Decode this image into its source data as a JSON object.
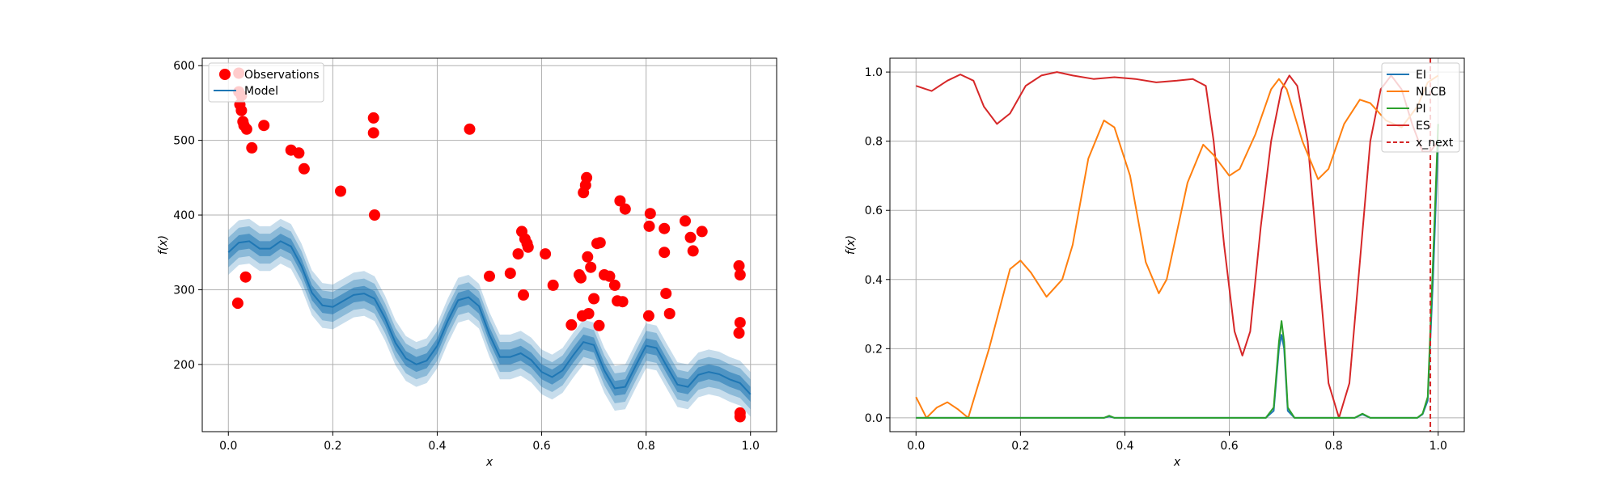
{
  "chart_data": [
    {
      "type": "scatter",
      "xlabel": "x",
      "ylabel": "f(x)",
      "xlim": [
        -0.05,
        1.05
      ],
      "ylim": [
        110,
        610
      ],
      "xticks": [
        0.0,
        0.2,
        0.4,
        0.6,
        0.8,
        1.0
      ],
      "xtick_labels": [
        "0.0",
        "0.2",
        "0.4",
        "0.6",
        "0.8",
        "1.0"
      ],
      "yticks": [
        200,
        300,
        400,
        500,
        600
      ],
      "ytick_labels": [
        "200",
        "300",
        "400",
        "500",
        "600"
      ],
      "grid": true,
      "legend_position": "upper-left",
      "legend": [
        "Observations",
        "Model"
      ],
      "colors": {
        "observations": "#ff0000",
        "model": "#1f77b4"
      },
      "model": {
        "x": [
          0.0,
          0.02,
          0.04,
          0.06,
          0.08,
          0.1,
          0.12,
          0.14,
          0.16,
          0.18,
          0.2,
          0.22,
          0.24,
          0.26,
          0.28,
          0.3,
          0.32,
          0.34,
          0.36,
          0.38,
          0.4,
          0.42,
          0.44,
          0.46,
          0.48,
          0.5,
          0.52,
          0.54,
          0.56,
          0.58,
          0.6,
          0.62,
          0.64,
          0.66,
          0.68,
          0.7,
          0.72,
          0.74,
          0.76,
          0.78,
          0.8,
          0.82,
          0.84,
          0.86,
          0.88,
          0.9,
          0.92,
          0.94,
          0.96,
          0.98,
          1.0
        ],
        "mean": [
          350,
          363,
          365,
          355,
          355,
          365,
          358,
          332,
          296,
          279,
          277,
          285,
          293,
          295,
          288,
          262,
          229,
          208,
          200,
          205,
          225,
          258,
          286,
          290,
          278,
          240,
          210,
          210,
          215,
          206,
          190,
          183,
          192,
          212,
          230,
          226,
          192,
          168,
          170,
          198,
          225,
          222,
          197,
          173,
          170,
          186,
          190,
          187,
          180,
          175,
          160
        ],
        "std_bands": [
          10,
          20,
          30
        ]
      },
      "observations": {
        "x": [
          0.02,
          0.02,
          0.022,
          0.025,
          0.028,
          0.03,
          0.035,
          0.025,
          0.018,
          0.033,
          0.045,
          0.068,
          0.12,
          0.135,
          0.145,
          0.215,
          0.278,
          0.278,
          0.28,
          0.462,
          0.5,
          0.54,
          0.555,
          0.562,
          0.568,
          0.572,
          0.574,
          0.565,
          0.607,
          0.622,
          0.657,
          0.672,
          0.675,
          0.678,
          0.68,
          0.684,
          0.686,
          0.69,
          0.688,
          0.694,
          0.7,
          0.706,
          0.712,
          0.71,
          0.72,
          0.73,
          0.74,
          0.745,
          0.75,
          0.755,
          0.76,
          0.805,
          0.806,
          0.808,
          0.835,
          0.835,
          0.838,
          0.845,
          0.875,
          0.885,
          0.89,
          0.907,
          0.978,
          0.98,
          0.98,
          0.978,
          0.98,
          0.98
        ],
        "y": [
          590,
          565,
          548,
          540,
          525,
          520,
          515,
          560,
          282,
          317,
          490,
          520,
          487,
          483,
          462,
          432,
          530,
          510,
          400,
          515,
          318,
          322,
          348,
          378,
          368,
          362,
          357,
          293,
          348,
          306,
          253,
          320,
          316,
          265,
          430,
          440,
          450,
          268,
          344,
          330,
          288,
          362,
          363,
          252,
          320,
          318,
          306,
          285,
          419,
          284,
          408,
          265,
          385,
          402,
          350,
          382,
          295,
          268,
          392,
          370,
          352,
          378,
          332,
          320,
          256,
          242,
          135,
          130
        ]
      }
    },
    {
      "type": "line",
      "xlabel": "x",
      "ylabel": "f(x)",
      "xlim": [
        -0.05,
        1.05
      ],
      "ylim": [
        -0.04,
        1.04
      ],
      "xticks": [
        0.0,
        0.2,
        0.4,
        0.6,
        0.8,
        1.0
      ],
      "xtick_labels": [
        "0.0",
        "0.2",
        "0.4",
        "0.6",
        "0.8",
        "1.0"
      ],
      "yticks": [
        0.0,
        0.2,
        0.4,
        0.6,
        0.8,
        1.0
      ],
      "ytick_labels": [
        "0.0",
        "0.2",
        "0.4",
        "0.6",
        "0.8",
        "1.0"
      ],
      "grid": true,
      "legend_position": "upper-right",
      "x_next": 0.985,
      "series": [
        {
          "name": "EI",
          "color": "#1f77b4",
          "points": [
            [
              0.0,
              0.0
            ],
            [
              0.36,
              0.0
            ],
            [
              0.37,
              0.004
            ],
            [
              0.38,
              0.0
            ],
            [
              0.67,
              0.0
            ],
            [
              0.685,
              0.02
            ],
            [
              0.695,
              0.2
            ],
            [
              0.7,
              0.24
            ],
            [
              0.705,
              0.2
            ],
            [
              0.712,
              0.02
            ],
            [
              0.725,
              0.0
            ],
            [
              0.84,
              0.0
            ],
            [
              0.855,
              0.01
            ],
            [
              0.87,
              0.0
            ],
            [
              0.96,
              0.0
            ],
            [
              0.97,
              0.01
            ],
            [
              0.98,
              0.05
            ],
            [
              0.99,
              0.4
            ],
            [
              1.0,
              0.8
            ]
          ]
        },
        {
          "name": "NLCB",
          "color": "#ff7f0e",
          "points": [
            [
              0.0,
              0.06
            ],
            [
              0.02,
              0.0
            ],
            [
              0.04,
              0.03
            ],
            [
              0.06,
              0.045
            ],
            [
              0.08,
              0.025
            ],
            [
              0.1,
              0.0
            ],
            [
              0.14,
              0.2
            ],
            [
              0.18,
              0.43
            ],
            [
              0.2,
              0.455
            ],
            [
              0.22,
              0.42
            ],
            [
              0.25,
              0.35
            ],
            [
              0.28,
              0.4
            ],
            [
              0.3,
              0.5
            ],
            [
              0.33,
              0.75
            ],
            [
              0.36,
              0.86
            ],
            [
              0.38,
              0.84
            ],
            [
              0.41,
              0.7
            ],
            [
              0.44,
              0.45
            ],
            [
              0.465,
              0.36
            ],
            [
              0.48,
              0.4
            ],
            [
              0.52,
              0.68
            ],
            [
              0.55,
              0.79
            ],
            [
              0.57,
              0.76
            ],
            [
              0.6,
              0.7
            ],
            [
              0.62,
              0.72
            ],
            [
              0.65,
              0.82
            ],
            [
              0.68,
              0.95
            ],
            [
              0.695,
              0.98
            ],
            [
              0.71,
              0.95
            ],
            [
              0.74,
              0.8
            ],
            [
              0.77,
              0.69
            ],
            [
              0.79,
              0.72
            ],
            [
              0.82,
              0.85
            ],
            [
              0.85,
              0.92
            ],
            [
              0.87,
              0.91
            ],
            [
              0.9,
              0.86
            ],
            [
              0.93,
              0.84
            ],
            [
              0.96,
              0.9
            ],
            [
              0.98,
              0.97
            ],
            [
              1.0,
              0.99
            ]
          ]
        },
        {
          "name": "PI",
          "color": "#2ca02c",
          "points": [
            [
              0.0,
              0.0
            ],
            [
              0.36,
              0.0
            ],
            [
              0.37,
              0.006
            ],
            [
              0.38,
              0.0
            ],
            [
              0.67,
              0.0
            ],
            [
              0.685,
              0.03
            ],
            [
              0.695,
              0.22
            ],
            [
              0.7,
              0.28
            ],
            [
              0.705,
              0.22
            ],
            [
              0.712,
              0.03
            ],
            [
              0.725,
              0.0
            ],
            [
              0.84,
              0.0
            ],
            [
              0.855,
              0.012
            ],
            [
              0.87,
              0.0
            ],
            [
              0.96,
              0.0
            ],
            [
              0.97,
              0.012
            ],
            [
              0.98,
              0.06
            ],
            [
              0.99,
              0.45
            ],
            [
              1.0,
              0.85
            ]
          ]
        },
        {
          "name": "ES",
          "color": "#d62728",
          "points": [
            [
              0.0,
              0.96
            ],
            [
              0.03,
              0.945
            ],
            [
              0.06,
              0.975
            ],
            [
              0.085,
              0.993
            ],
            [
              0.11,
              0.975
            ],
            [
              0.13,
              0.9
            ],
            [
              0.155,
              0.85
            ],
            [
              0.18,
              0.88
            ],
            [
              0.21,
              0.96
            ],
            [
              0.24,
              0.99
            ],
            [
              0.27,
              1.0
            ],
            [
              0.3,
              0.99
            ],
            [
              0.34,
              0.98
            ],
            [
              0.38,
              0.985
            ],
            [
              0.42,
              0.98
            ],
            [
              0.46,
              0.97
            ],
            [
              0.5,
              0.975
            ],
            [
              0.53,
              0.98
            ],
            [
              0.555,
              0.96
            ],
            [
              0.57,
              0.8
            ],
            [
              0.59,
              0.5
            ],
            [
              0.61,
              0.25
            ],
            [
              0.625,
              0.18
            ],
            [
              0.64,
              0.25
            ],
            [
              0.66,
              0.55
            ],
            [
              0.68,
              0.8
            ],
            [
              0.7,
              0.95
            ],
            [
              0.715,
              0.99
            ],
            [
              0.73,
              0.96
            ],
            [
              0.75,
              0.8
            ],
            [
              0.77,
              0.45
            ],
            [
              0.79,
              0.1
            ],
            [
              0.81,
              0.0
            ],
            [
              0.83,
              0.1
            ],
            [
              0.85,
              0.45
            ],
            [
              0.87,
              0.8
            ],
            [
              0.89,
              0.95
            ],
            [
              0.91,
              0.99
            ],
            [
              0.93,
              0.95
            ],
            [
              0.95,
              0.85
            ],
            [
              0.97,
              0.77
            ],
            [
              0.985,
              0.77
            ],
            [
              1.0,
              0.8
            ]
          ]
        }
      ],
      "legend": [
        "EI",
        "NLCB",
        "PI",
        "ES",
        "x_next"
      ]
    }
  ]
}
